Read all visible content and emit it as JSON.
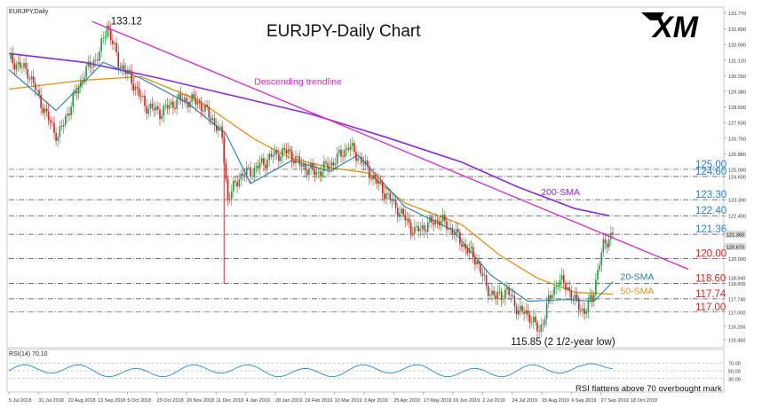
{
  "instrument_label": "EURJPY,Daily",
  "title": "EURJPY-Daily Chart",
  "brand": "XM",
  "rsi_label": "RSI(14) 70.10",
  "chart_data": {
    "type": "line",
    "title": "EURJPY-Daily Chart",
    "ylim": [
      115.0,
      134.0
    ],
    "x_dates": [
      "5 Jul 2018",
      "31 Jul 2018",
      "22 Aug 2018",
      "13 Sep 2018",
      "5 Oct 2018",
      "29 Oct 2018",
      "20 Nov 2018",
      "11 Dec 2018",
      "4 Jan 2019",
      "28 Jan 2019",
      "19 Feb 2019",
      "12 Mar 2019",
      "3 Apr 2019",
      "25 Apr 2019",
      "17 May 2019",
      "10 Jun 2019",
      "2 Jul 2019",
      "24 Jul 2019",
      "15 Aug 2019",
      "6 Sep 2019",
      "27 Sep 2019",
      "18 Oct 2019"
    ],
    "yticks": [
      "133.770",
      "132.890",
      "132.000",
      "131.120",
      "130.250",
      "129.380",
      "128.500",
      "127.630",
      "126.750",
      "125.880",
      "125.000",
      "124.600",
      "123.300",
      "122.400",
      "121.360",
      "120.670",
      "120.000",
      "118.940",
      "118.600",
      "117.740",
      "117.000",
      "116.200",
      "115.450"
    ],
    "price_axis_tags": [
      "121.360",
      "120.670"
    ],
    "key_levels": [
      {
        "value": 125.0,
        "label": "125.00",
        "color": "#2a7fd4"
      },
      {
        "value": 124.6,
        "label": "124.60",
        "color": "#2a7fd4"
      },
      {
        "value": 123.3,
        "label": "123.30",
        "color": "#2a7fd4"
      },
      {
        "value": 122.4,
        "label": "122.40",
        "color": "#2a7fd4"
      },
      {
        "value": 121.36,
        "label": "121.36",
        "color": "#2a7fd4"
      },
      {
        "value": 120.0,
        "label": "120.00",
        "color": "#e02020"
      },
      {
        "value": 118.6,
        "label": "118.60",
        "color": "#e02020"
      },
      {
        "value": 117.74,
        "label": "117.74",
        "color": "#e02020"
      },
      {
        "value": 117.0,
        "label": "117.00",
        "color": "#e02020"
      }
    ],
    "price_points": [
      {
        "d": 0,
        "v": 131.2
      },
      {
        "d": 10,
        "v": 130.5
      },
      {
        "d": 20,
        "v": 128.0
      },
      {
        "d": 26,
        "v": 126.8
      },
      {
        "d": 32,
        "v": 128.4
      },
      {
        "d": 40,
        "v": 130.4
      },
      {
        "d": 48,
        "v": 131.5
      },
      {
        "d": 52,
        "v": 133.12
      },
      {
        "d": 58,
        "v": 131.0
      },
      {
        "d": 64,
        "v": 130.2
      },
      {
        "d": 72,
        "v": 128.6
      },
      {
        "d": 80,
        "v": 128.2
      },
      {
        "d": 90,
        "v": 128.9
      },
      {
        "d": 100,
        "v": 128.8
      },
      {
        "d": 108,
        "v": 127.8
      },
      {
        "d": 113,
        "v": 126.8
      },
      {
        "d": 116,
        "v": 123.3
      },
      {
        "d": 122,
        "v": 124.6
      },
      {
        "d": 130,
        "v": 125.0
      },
      {
        "d": 140,
        "v": 125.8
      },
      {
        "d": 148,
        "v": 126.0
      },
      {
        "d": 155,
        "v": 125.2
      },
      {
        "d": 163,
        "v": 124.8
      },
      {
        "d": 172,
        "v": 125.4
      },
      {
        "d": 180,
        "v": 126.3
      },
      {
        "d": 186,
        "v": 125.6
      },
      {
        "d": 192,
        "v": 124.7
      },
      {
        "d": 200,
        "v": 123.6
      },
      {
        "d": 208,
        "v": 122.5
      },
      {
        "d": 215,
        "v": 121.5
      },
      {
        "d": 222,
        "v": 121.9
      },
      {
        "d": 228,
        "v": 122.2
      },
      {
        "d": 235,
        "v": 121.6
      },
      {
        "d": 242,
        "v": 120.6
      },
      {
        "d": 248,
        "v": 119.9
      },
      {
        "d": 253,
        "v": 118.4
      },
      {
        "d": 258,
        "v": 117.8
      },
      {
        "d": 264,
        "v": 118.2
      },
      {
        "d": 270,
        "v": 117.1
      },
      {
        "d": 276,
        "v": 116.8
      },
      {
        "d": 281,
        "v": 115.85
      },
      {
        "d": 286,
        "v": 117.6
      },
      {
        "d": 291,
        "v": 118.8
      },
      {
        "d": 296,
        "v": 118.4
      },
      {
        "d": 300,
        "v": 117.6
      },
      {
        "d": 305,
        "v": 117.0
      },
      {
        "d": 309,
        "v": 117.8
      },
      {
        "d": 312,
        "v": 119.3
      },
      {
        "d": 315,
        "v": 120.7
      },
      {
        "d": 318,
        "v": 121.2
      },
      {
        "d": 320,
        "v": 121.36
      }
    ],
    "annotations": [
      {
        "text": "133.12",
        "d": 54,
        "v": 133.12
      },
      {
        "text": "Descending trendline",
        "d": 130,
        "v": 129.75
      },
      {
        "text": "200-SMA",
        "d": 282,
        "v": 123.55
      },
      {
        "text": "20-SMA",
        "d": 324,
        "v": 118.8
      },
      {
        "text": "50-SMA",
        "d": 324,
        "v": 118.0
      },
      {
        "text": "115.85 (2 1/2-year low)",
        "d": 266,
        "v": 115.15
      }
    ],
    "trendline": {
      "start": {
        "d": 44,
        "v": 133.3
      },
      "end": {
        "d": 360,
        "v": 119.4
      }
    },
    "sma200": [
      {
        "d": 0,
        "v": 131.5
      },
      {
        "d": 40,
        "v": 131.0
      },
      {
        "d": 80,
        "v": 130.1
      },
      {
        "d": 120,
        "v": 129.1
      },
      {
        "d": 160,
        "v": 128.1
      },
      {
        "d": 200,
        "v": 126.8
      },
      {
        "d": 240,
        "v": 125.4
      },
      {
        "d": 270,
        "v": 124.0
      },
      {
        "d": 300,
        "v": 122.8
      },
      {
        "d": 318,
        "v": 122.4
      }
    ],
    "sma50": [
      {
        "d": 0,
        "v": 129.5
      },
      {
        "d": 40,
        "v": 130.0
      },
      {
        "d": 70,
        "v": 130.2
      },
      {
        "d": 100,
        "v": 128.9
      },
      {
        "d": 130,
        "v": 126.7
      },
      {
        "d": 150,
        "v": 125.6
      },
      {
        "d": 170,
        "v": 125.1
      },
      {
        "d": 190,
        "v": 124.8
      },
      {
        "d": 210,
        "v": 123.1
      },
      {
        "d": 240,
        "v": 121.9
      },
      {
        "d": 260,
        "v": 120.2
      },
      {
        "d": 280,
        "v": 118.9
      },
      {
        "d": 300,
        "v": 118.1
      },
      {
        "d": 320,
        "v": 118.0
      }
    ],
    "sma20": [
      {
        "d": 0,
        "v": 130.6
      },
      {
        "d": 25,
        "v": 128.3
      },
      {
        "d": 50,
        "v": 131.0
      },
      {
        "d": 70,
        "v": 130.1
      },
      {
        "d": 95,
        "v": 128.7
      },
      {
        "d": 115,
        "v": 127.0
      },
      {
        "d": 128,
        "v": 124.2
      },
      {
        "d": 150,
        "v": 125.5
      },
      {
        "d": 170,
        "v": 124.9
      },
      {
        "d": 185,
        "v": 125.8
      },
      {
        "d": 210,
        "v": 122.9
      },
      {
        "d": 235,
        "v": 121.6
      },
      {
        "d": 255,
        "v": 119.1
      },
      {
        "d": 275,
        "v": 117.6
      },
      {
        "d": 295,
        "v": 117.7
      },
      {
        "d": 310,
        "v": 117.6
      },
      {
        "d": 320,
        "v": 118.7
      }
    ],
    "rsi_levels": [
      "70.00",
      "50.00",
      "30.00"
    ],
    "rsi_note": "RSI flattens above 70 overbought mark"
  }
}
